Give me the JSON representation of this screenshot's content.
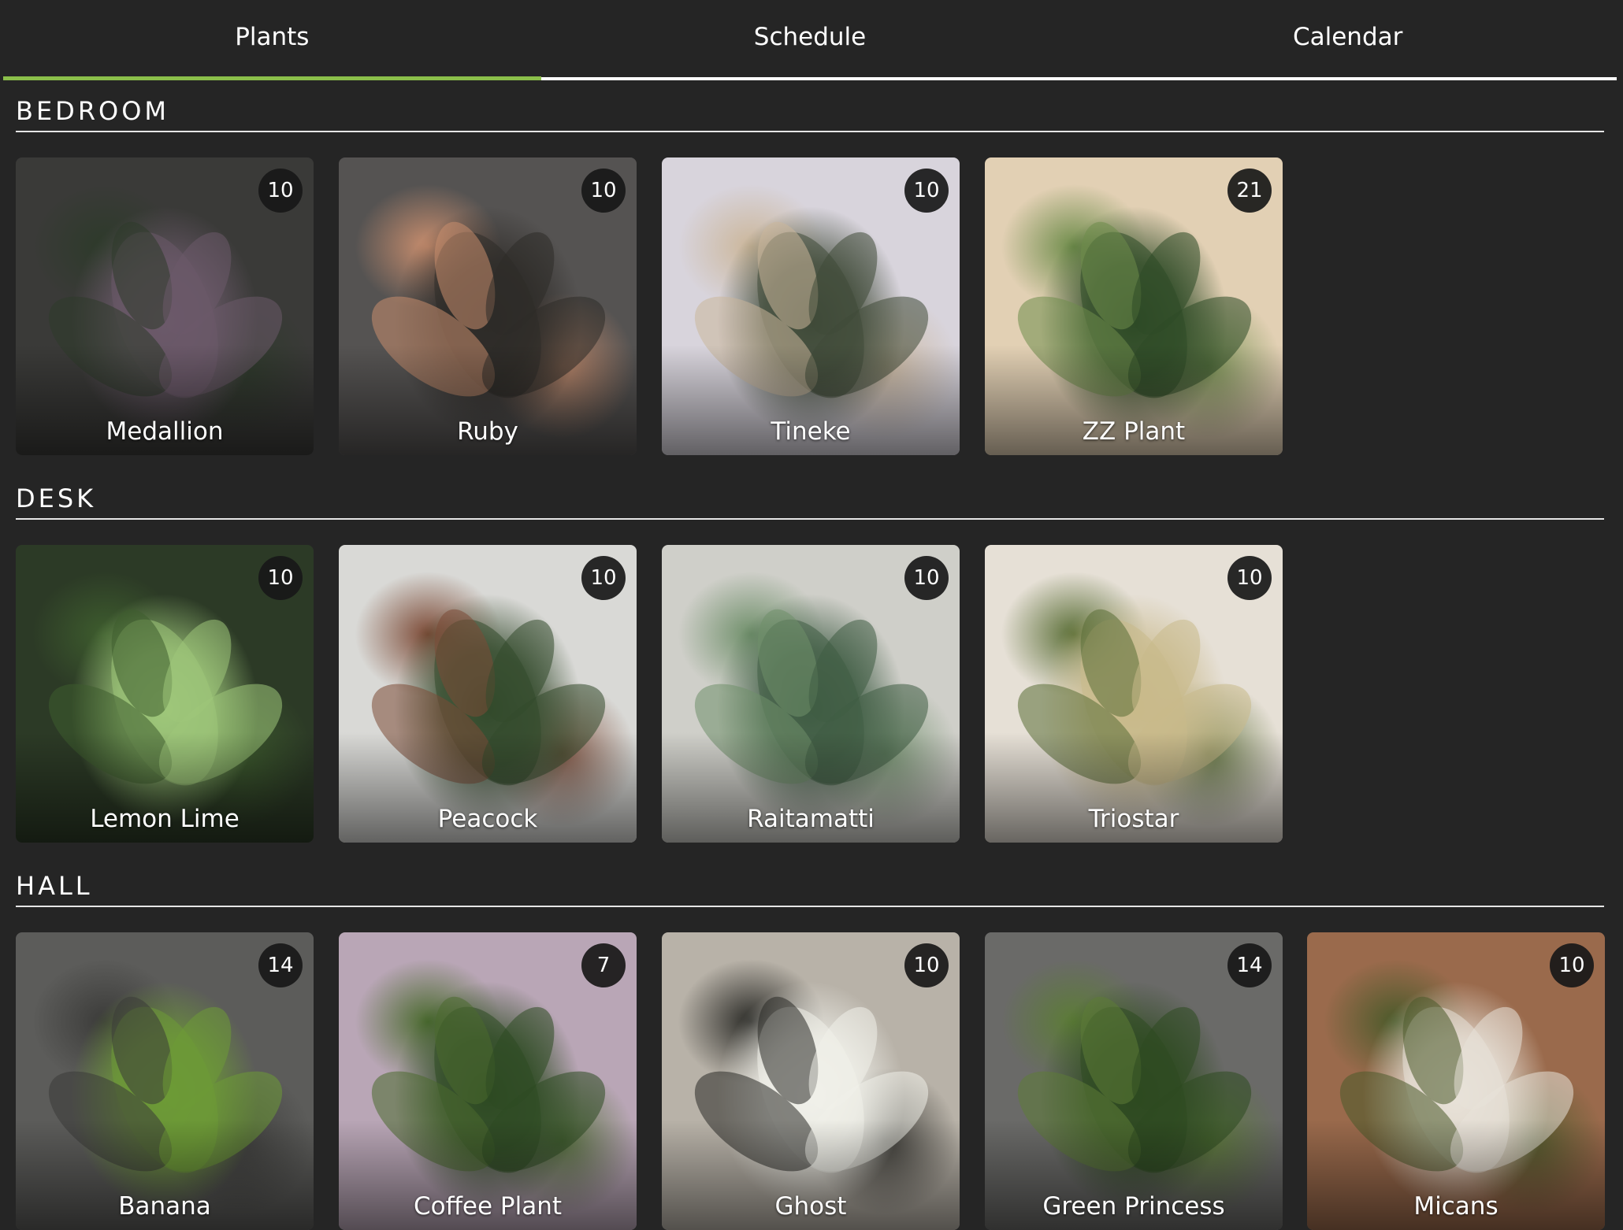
{
  "tabs": [
    {
      "label": "Plants",
      "active": true
    },
    {
      "label": "Schedule",
      "active": false
    },
    {
      "label": "Calendar",
      "active": false
    }
  ],
  "colors": {
    "background": "#252525",
    "active_tab_indicator": "#8bbf4a",
    "divider": "#e6e6e6",
    "badge_bg": "#181818"
  },
  "sections": [
    {
      "title": "BEDROOM",
      "plants": [
        {
          "name": "Medallion",
          "badge": "10",
          "palette": [
            "#3a3a38",
            "#6b5a6a",
            "#2d3a2a"
          ]
        },
        {
          "name": "Ruby",
          "badge": "10",
          "palette": [
            "#555352",
            "#2e2b28",
            "#c98e6e"
          ]
        },
        {
          "name": "Tineke",
          "badge": "10",
          "palette": [
            "#d8d4dc",
            "#3f4a38",
            "#cbb69a"
          ]
        },
        {
          "name": "ZZ Plant",
          "badge": "21",
          "palette": [
            "#e2d0b4",
            "#2e4a26",
            "#6e8c4a"
          ]
        }
      ]
    },
    {
      "title": "DESK",
      "plants": [
        {
          "name": "Lemon Lime",
          "badge": "10",
          "palette": [
            "#2c3a26",
            "#9ec77a",
            "#3e5d2e"
          ]
        },
        {
          "name": "Peacock",
          "badge": "10",
          "palette": [
            "#d9d9d6",
            "#334a2c",
            "#7c4a36"
          ]
        },
        {
          "name": "Raitamatti",
          "badge": "10",
          "palette": [
            "#cfcfc9",
            "#3f5c44",
            "#6f8f6a"
          ]
        },
        {
          "name": "Triostar",
          "badge": "10",
          "palette": [
            "#e6e0d6",
            "#c9b98a",
            "#5a6e36"
          ]
        }
      ]
    },
    {
      "title": "HALL",
      "plants": [
        {
          "name": "Banana",
          "badge": "14",
          "palette": [
            "#5c5c5a",
            "#6d9a36",
            "#3b3b39"
          ]
        },
        {
          "name": "Coffee Plant",
          "badge": "7",
          "palette": [
            "#b9a6b6",
            "#2d4a22",
            "#4a6a2e"
          ]
        },
        {
          "name": "Ghost",
          "badge": "10",
          "palette": [
            "#b8b2a8",
            "#f0f0ea",
            "#2a2a26"
          ]
        },
        {
          "name": "Green Princess",
          "badge": "14",
          "palette": [
            "#6a6a68",
            "#2e4a20",
            "#5c7c36"
          ]
        },
        {
          "name": "Micans",
          "badge": "10",
          "palette": [
            "#9a6a4c",
            "#e8e2d8",
            "#4a5a2a"
          ]
        }
      ]
    }
  ]
}
